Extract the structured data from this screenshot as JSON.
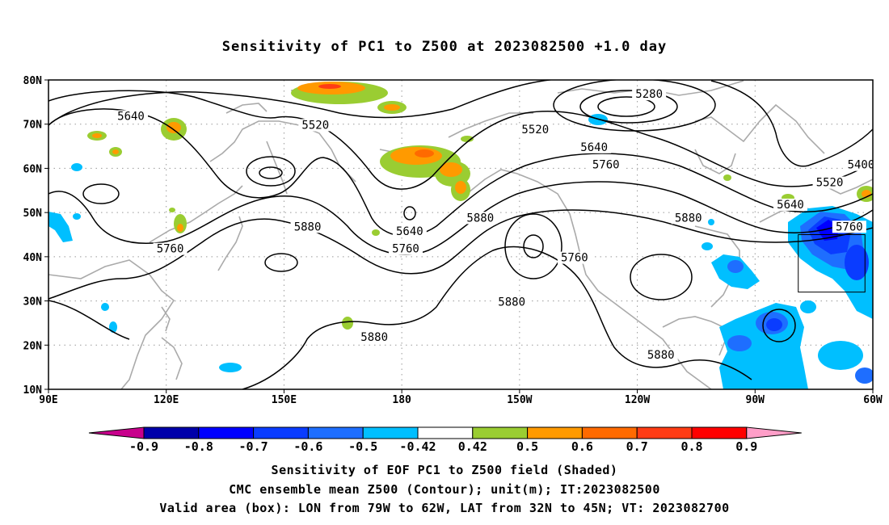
{
  "title": "Sensitivity of PC1 to Z500 at 2023082500 +1.0 day",
  "map": {
    "lat_labels": [
      "80N",
      "70N",
      "60N",
      "50N",
      "40N",
      "30N",
      "20N",
      "10N"
    ],
    "lon_labels": [
      "90E",
      "120E",
      "150E",
      "180",
      "150W",
      "120W",
      "90W",
      "60W"
    ],
    "contour_labels": [
      {
        "text": "5280",
        "lon": -117,
        "lat": 76.5
      },
      {
        "text": "5640",
        "lon": 111,
        "lat": 71.5
      },
      {
        "text": "5520",
        "lon": 158,
        "lat": 69.5
      },
      {
        "text": "5520",
        "lon": -146,
        "lat": 68.5
      },
      {
        "text": "5640",
        "lon": -131,
        "lat": 64.5
      },
      {
        "text": "5760",
        "lon": -128,
        "lat": 60.5
      },
      {
        "text": "5400",
        "lon": -63,
        "lat": 60.5
      },
      {
        "text": "5520",
        "lon": -71,
        "lat": 56.5
      },
      {
        "text": "5640",
        "lon": -81,
        "lat": 51.5
      },
      {
        "text": "5760",
        "lon": -66,
        "lat": 46.5
      },
      {
        "text": "5880",
        "lon": -160,
        "lat": 48.5
      },
      {
        "text": "5880",
        "lon": -107,
        "lat": 48.5
      },
      {
        "text": "5880",
        "lon": 156,
        "lat": 46.5
      },
      {
        "text": "5640",
        "lon": -178,
        "lat": 45.5
      },
      {
        "text": "5760",
        "lon": 121,
        "lat": 41.5
      },
      {
        "text": "5760",
        "lon": -179,
        "lat": 41.5
      },
      {
        "text": "5760",
        "lon": -136,
        "lat": 39.5
      },
      {
        "text": "5880",
        "lon": -152,
        "lat": 29.5
      },
      {
        "text": "5880",
        "lon": 173,
        "lat": 21.5
      },
      {
        "text": "5880",
        "lon": -114,
        "lat": 17.5
      }
    ],
    "valid_box": {
      "lon_min": -79,
      "lon_max": -62,
      "lat_min": 32,
      "lat_max": 45
    }
  },
  "colorbar": {
    "labels": [
      "-0.9",
      "-0.8",
      "-0.7",
      "-0.6",
      "-0.5",
      "-0.42",
      "0.42",
      "0.5",
      "0.6",
      "0.7",
      "0.8",
      "0.9"
    ],
    "colors": {
      "low_triangle": "#c8008c",
      "boxes": [
        "#0000aa",
        "#0000ff",
        "#0a3cff",
        "#1e6eff",
        "#00bfff",
        "#ffffff",
        "#9acd32",
        "#ff9a00",
        "#ff6a00",
        "#ff3c14",
        "#ff0000"
      ],
      "high_triangle": "#ff9ec8"
    }
  },
  "captions": {
    "line1": "Sensitivity of EOF PC1 to Z500 field (Shaded)",
    "line2": "CMC ensemble mean Z500 (Contour); unit(m); IT:2023082500",
    "line3": "Valid area (box): LON from 79W to 62W, LAT from 32N to 45N; VT: 2023082700"
  }
}
